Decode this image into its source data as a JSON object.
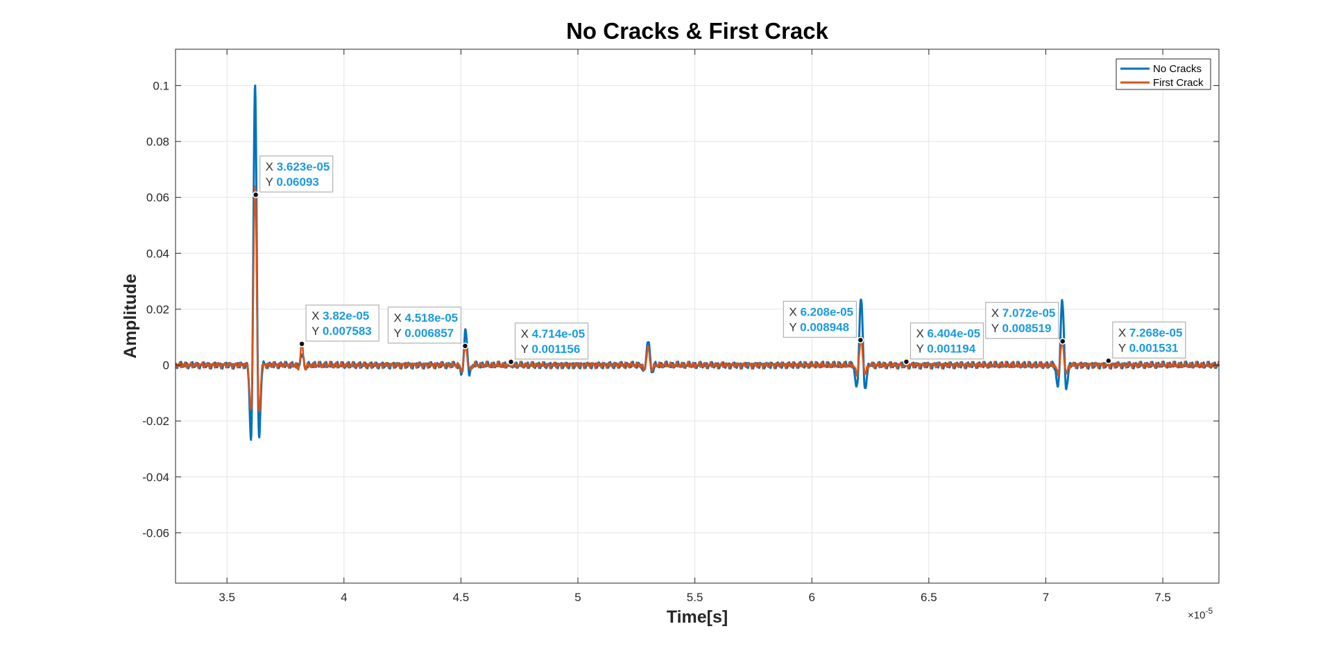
{
  "chart_data": {
    "type": "line",
    "title": "No Cracks & First Crack",
    "xlabel": "Time[s]",
    "ylabel": "Amplitude",
    "x_exponent_label": "×10",
    "x_exponent_power": "-5",
    "xlim": [
      3.28,
      7.74
    ],
    "ylim": [
      -0.078,
      0.113
    ],
    "xticks": [
      3.5,
      4,
      4.5,
      5,
      5.5,
      6,
      6.5,
      7,
      7.5
    ],
    "xtick_labels": [
      "3.5",
      "4",
      "4.5",
      "5",
      "5.5",
      "6",
      "6.5",
      "7",
      "7.5"
    ],
    "yticks": [
      -0.06,
      -0.04,
      -0.02,
      0,
      0.02,
      0.04,
      0.06,
      0.08,
      0.1
    ],
    "ytick_labels": [
      "-0.06",
      "-0.04",
      "-0.02",
      "0",
      "0.02",
      "0.04",
      "0.06",
      "0.08",
      "0.1"
    ],
    "grid": true,
    "legend_location": "top-right",
    "series": [
      {
        "name": "No Cracks",
        "color": "#0072BD",
        "bursts": [
          {
            "center": 3.62,
            "amp": 0.1,
            "width": 0.012,
            "freq": 22
          },
          {
            "center": 3.82,
            "amp": 0.004,
            "width": 0.01,
            "freq": 22
          },
          {
            "center": 4.52,
            "amp": 0.012,
            "width": 0.012,
            "freq": 22
          },
          {
            "center": 5.3,
            "amp": 0.009,
            "width": 0.012,
            "freq": 22
          },
          {
            "center": 6.21,
            "amp": 0.024,
            "width": 0.014,
            "freq": 22
          },
          {
            "center": 7.07,
            "amp": 0.023,
            "width": 0.014,
            "freq": 22
          }
        ]
      },
      {
        "name": "First Crack",
        "color": "#D95319",
        "bursts": [
          {
            "center": 3.62,
            "amp": 0.065,
            "width": 0.012,
            "freq": 22
          },
          {
            "center": 3.82,
            "amp": 0.0076,
            "width": 0.01,
            "freq": 22
          },
          {
            "center": 4.52,
            "amp": 0.0069,
            "width": 0.012,
            "freq": 22
          },
          {
            "center": 5.3,
            "amp": 0.006,
            "width": 0.012,
            "freq": 22
          },
          {
            "center": 6.21,
            "amp": 0.009,
            "width": 0.014,
            "freq": 22
          },
          {
            "center": 7.07,
            "amp": 0.0085,
            "width": 0.014,
            "freq": 22
          }
        ]
      }
    ],
    "datatips": [
      {
        "x": 3.623,
        "y": 0.06093,
        "x_text": "3.623e-05",
        "y_text": "0.06093",
        "side": "right"
      },
      {
        "x": 3.82,
        "y": 0.007583,
        "x_text": "3.82e-05",
        "y_text": "0.007583",
        "side": "right"
      },
      {
        "x": 4.518,
        "y": 0.006857,
        "x_text": "4.518e-05",
        "y_text": "0.006857",
        "side": "left"
      },
      {
        "x": 4.714,
        "y": 0.001156,
        "x_text": "4.714e-05",
        "y_text": "0.001156",
        "side": "right"
      },
      {
        "x": 6.208,
        "y": 0.008948,
        "x_text": "6.208e-05",
        "y_text": "0.008948",
        "side": "left"
      },
      {
        "x": 6.404,
        "y": 0.001194,
        "x_text": "6.404e-05",
        "y_text": "0.001194",
        "side": "right"
      },
      {
        "x": 7.072,
        "y": 0.008519,
        "x_text": "7.072e-05",
        "y_text": "0.008519",
        "side": "left"
      },
      {
        "x": 7.268,
        "y": 0.001531,
        "x_text": "7.268e-05",
        "y_text": "0.001531",
        "side": "right"
      }
    ],
    "datatip_x_key": "X",
    "datatip_y_key": "Y"
  }
}
